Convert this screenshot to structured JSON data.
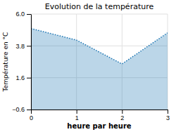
{
  "chart_data": {
    "type": "area",
    "title": "Evolution de la température",
    "xlabel": "heure par heure",
    "ylabel": "Température en °C",
    "x": [
      0,
      1,
      2,
      3
    ],
    "values": [
      5.0,
      4.2,
      2.55,
      4.7
    ],
    "xlim": [
      0,
      3
    ],
    "ylim": [
      -0.6,
      6.0
    ],
    "xticks": [
      0,
      1,
      2,
      3
    ],
    "yticks": [
      {
        "value": -0.6,
        "label": "−0.6"
      },
      {
        "value": 1.6,
        "label": "1.6"
      },
      {
        "value": 3.8,
        "label": "3.8"
      },
      {
        "value": 6.0,
        "label": "6.0"
      }
    ],
    "grid": true,
    "line_style": "dotted"
  }
}
